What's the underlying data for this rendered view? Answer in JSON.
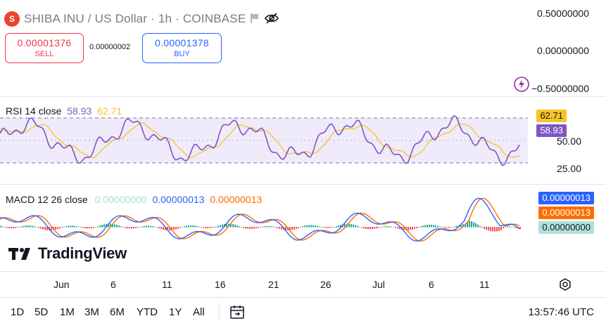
{
  "header": {
    "coin_glyph": "S",
    "title": "SHIBA INU / US Dollar · 1h · COINBASE",
    "sell_price": "0.00001376",
    "sell_label": "SELL",
    "spread": "0.00000002",
    "buy_price": "0.00001378",
    "buy_label": "BUY"
  },
  "main_axis": {
    "labels": [
      "0.50000000",
      "0.00000000",
      "−0.50000000"
    ]
  },
  "rsi": {
    "name": "RSI 14 close",
    "value": "58.93",
    "ma_value": "62.71",
    "axis_labels": [
      "50.00",
      "25.00"
    ],
    "tag_ma": "62.71",
    "tag_value": "58.93",
    "color": "#7e57c2",
    "ma_color": "#f7c325",
    "band_color": "#f0ebfb"
  },
  "macd": {
    "name": "MACD 12 26 close",
    "histogram": "0.00000000",
    "macd": "0.00000013",
    "signal": "0.00000013",
    "tag_macd": "0.00000013",
    "tag_signal": "0.00000013",
    "tag_hist": "0.00000000",
    "colors": {
      "histogram": "#a8dcd6",
      "macd": "#2962ff",
      "signal": "#ff6d00",
      "hist_up": "#26a69a",
      "hist_down": "#ef5350"
    }
  },
  "watermark": "TradingView",
  "x_axis": [
    "Jun",
    "6",
    "11",
    "16",
    "21",
    "26",
    "Jul",
    "6",
    "11"
  ],
  "timeframes": [
    "1D",
    "5D",
    "1M",
    "3M",
    "6M",
    "YTD",
    "1Y",
    "All"
  ],
  "clock": "13:57:46 UTC",
  "icons": {
    "lightning": "lightning-icon",
    "settings": "settings-icon",
    "calendar": "calendar-range-icon",
    "eye": "eye-off-icon",
    "flag": "flag-icon"
  }
}
